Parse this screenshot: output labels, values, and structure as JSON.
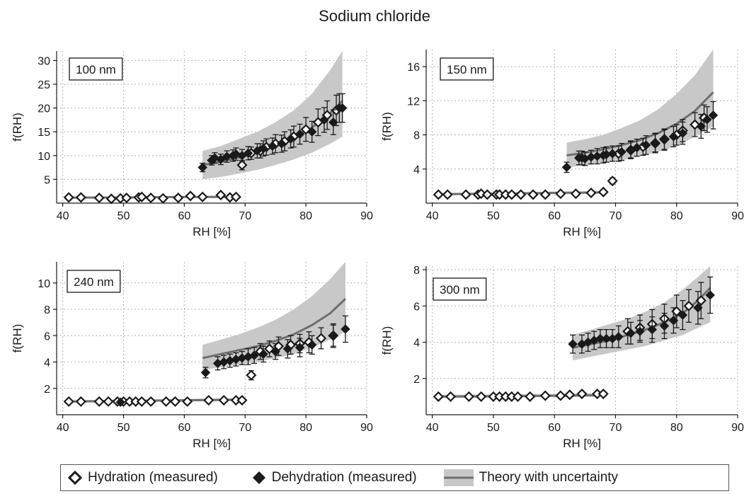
{
  "title": "Sodium chloride",
  "legend": {
    "hydration": "Hydration (measured)",
    "dehydration": "Dehydration (measured)",
    "theory": "Theory with uncertainty"
  },
  "colors": {
    "band": "#c8c8c8",
    "theory_line": "#6e6e6e",
    "marker": "#1a1a1a",
    "grid": "#b4b4b4"
  },
  "chart_data": [
    {
      "type": "scatter",
      "size_label": "100 nm",
      "xlabel": "RH [%]",
      "ylabel": "f(RH)",
      "xlim": [
        39,
        90
      ],
      "ylim": [
        0,
        32
      ],
      "xticks": [
        40,
        50,
        60,
        70,
        80,
        90
      ],
      "yticks": [
        5,
        10,
        15,
        20,
        25,
        30
      ],
      "grid": true,
      "series": [
        {
          "name": "Hydration (measured)",
          "x": [
            41,
            43,
            46,
            48,
            49.5,
            50.5,
            52.5,
            53,
            54.5,
            56.5,
            59,
            61,
            63,
            66,
            67.5,
            68.5,
            69.5,
            71,
            72.5,
            73.5,
            75,
            76.5,
            78,
            80,
            82,
            83.5,
            85
          ],
          "y": [
            1.2,
            1.2,
            1.1,
            0.9,
            1.0,
            1.1,
            1.2,
            1.3,
            1.1,
            1.0,
            1.1,
            1.5,
            1.3,
            1.7,
            1.2,
            1.3,
            8.0,
            10.5,
            11.0,
            11.8,
            12.5,
            13.0,
            14.0,
            15.5,
            17.0,
            18.5,
            19.5
          ],
          "yerr": [
            0,
            0,
            0,
            0,
            0,
            0,
            0,
            0,
            0,
            0,
            0,
            0,
            0,
            0,
            0,
            0,
            1.0,
            1.3,
            1.5,
            1.7,
            1.9,
            2.0,
            2.2,
            2.5,
            2.8,
            3.0,
            3.2
          ]
        },
        {
          "name": "Dehydration (measured)",
          "x": [
            63,
            64.5,
            65,
            66,
            67,
            68,
            68.5,
            69.5,
            70.5,
            72,
            73,
            74.5,
            76,
            77.5,
            79,
            81,
            83,
            84.5,
            85.5,
            86
          ],
          "y": [
            7.5,
            9.0,
            9.5,
            9.2,
            9.8,
            10.0,
            10.3,
            10.0,
            10.5,
            11.0,
            11.5,
            12.0,
            12.5,
            13.5,
            14.5,
            15.0,
            17.5,
            17.0,
            20.0,
            20.0
          ],
          "yerr": [
            0.9,
            1.0,
            1.1,
            1.1,
            1.2,
            1.2,
            1.3,
            1.3,
            1.4,
            1.5,
            1.6,
            1.7,
            1.8,
            1.9,
            2.1,
            2.2,
            2.6,
            2.6,
            3.0,
            3.0
          ]
        }
      ],
      "theory": {
        "x": [
          41,
          50,
          60,
          69,
          63,
          66,
          69,
          72,
          75,
          78,
          81,
          84,
          86
        ],
        "y": [
          1.15,
          1.2,
          1.3,
          1.3,
          8.0,
          8.7,
          9.6,
          10.7,
          12.0,
          13.7,
          15.9,
          18.9,
          21.5
        ],
        "lower": [
          1.0,
          1.0,
          1.1,
          1.1,
          5.0,
          5.5,
          6.2,
          7.0,
          8.0,
          9.2,
          10.6,
          12.5,
          14.0
        ],
        "upper": [
          1.35,
          1.4,
          1.5,
          1.5,
          11.0,
          12.0,
          13.5,
          15.0,
          17.0,
          19.5,
          23.0,
          28.0,
          32.0
        ],
        "segments": [
          [
            0,
            3
          ],
          [
            4,
            12
          ]
        ]
      }
    },
    {
      "type": "scatter",
      "size_label": "150 nm",
      "xlabel": "RH [%]",
      "ylabel": "f(RH)",
      "xlim": [
        39,
        90
      ],
      "ylim": [
        0,
        18
      ],
      "xticks": [
        40,
        50,
        60,
        70,
        80,
        90
      ],
      "yticks": [
        4,
        8,
        12,
        16
      ],
      "grid": true,
      "series": [
        {
          "name": "Hydration (measured)",
          "x": [
            41,
            42.5,
            45.5,
            47.5,
            48,
            49,
            50.5,
            51,
            52,
            53,
            54.5,
            56.5,
            58.5,
            61,
            63.5,
            66,
            68,
            69.5,
            70.5,
            72.5,
            74.5,
            76.5,
            78,
            80,
            81,
            83,
            84.5
          ],
          "y": [
            1.0,
            1.0,
            1.0,
            1.0,
            1.1,
            1.0,
            1.0,
            1.0,
            1.0,
            1.0,
            1.0,
            1.0,
            1.0,
            1.1,
            1.1,
            1.2,
            1.3,
            2.6,
            5.8,
            6.2,
            6.6,
            7.0,
            7.5,
            8.0,
            8.5,
            9.2,
            10.0
          ],
          "yerr": [
            0,
            0,
            0,
            0,
            0,
            0,
            0,
            0,
            0,
            0,
            0,
            0,
            0,
            0,
            0,
            0,
            0,
            0.35,
            0.9,
            1.0,
            1.0,
            1.1,
            1.2,
            1.2,
            1.3,
            1.4,
            1.5
          ]
        },
        {
          "name": "Dehydration (measured)",
          "x": [
            62,
            64,
            64.5,
            65,
            66,
            67,
            68,
            68.5,
            69.5,
            71,
            72.5,
            73.5,
            75,
            76.5,
            78,
            79.5,
            81,
            84,
            85,
            86
          ],
          "y": [
            4.2,
            5.3,
            5.3,
            5.2,
            5.4,
            5.5,
            5.6,
            5.7,
            5.8,
            6.0,
            6.3,
            6.5,
            6.8,
            7.1,
            7.4,
            7.8,
            8.2,
            9.0,
            9.8,
            10.3
          ],
          "yerr": [
            0.6,
            0.8,
            0.8,
            0.8,
            0.8,
            0.9,
            0.9,
            0.9,
            0.9,
            1.0,
            1.0,
            1.0,
            1.1,
            1.1,
            1.2,
            1.2,
            1.3,
            1.4,
            1.5,
            1.6
          ]
        }
      ],
      "theory": {
        "x": [
          41,
          50,
          60,
          68,
          62,
          65,
          68,
          71,
          74,
          77,
          80,
          83,
          86
        ],
        "y": [
          1.05,
          1.1,
          1.2,
          1.25,
          5.6,
          5.9,
          6.3,
          6.8,
          7.4,
          8.2,
          9.3,
          10.8,
          13.0
        ],
        "lower": [
          0.95,
          1.0,
          1.05,
          1.1,
          4.2,
          4.4,
          4.7,
          5.0,
          5.5,
          6.0,
          6.7,
          7.8,
          9.0
        ],
        "upper": [
          1.2,
          1.25,
          1.35,
          1.4,
          7.1,
          7.5,
          8.0,
          8.8,
          9.7,
          11.0,
          12.8,
          15.0,
          18.0
        ],
        "segments": [
          [
            0,
            3
          ],
          [
            4,
            12
          ]
        ]
      }
    },
    {
      "type": "scatter",
      "size_label": "240 nm",
      "xlabel": "RH [%]",
      "ylabel": "f(RH)",
      "xlim": [
        39,
        90
      ],
      "ylim": [
        0,
        11.6
      ],
      "xticks": [
        40,
        50,
        60,
        70,
        80,
        90
      ],
      "yticks": [
        2,
        4,
        6,
        8,
        10
      ],
      "grid": true,
      "series": [
        {
          "name": "Hydration (measured)",
          "x": [
            41,
            43,
            46,
            47.5,
            49,
            50,
            51,
            52,
            53,
            54.5,
            57,
            58.5,
            60.5,
            64,
            66.5,
            68.5,
            69.5,
            71,
            72.5,
            74,
            75.5,
            77.5,
            79,
            80.5,
            82.5,
            84.5
          ],
          "y": [
            1.0,
            1.0,
            1.0,
            1.0,
            1.0,
            1.0,
            1.0,
            1.0,
            1.0,
            1.0,
            1.0,
            1.0,
            1.0,
            1.1,
            1.1,
            1.1,
            1.1,
            3.0,
            4.8,
            5.0,
            5.2,
            5.3,
            5.4,
            5.5,
            5.8,
            6.0
          ],
          "yerr": [
            0,
            0,
            0,
            0,
            0,
            0,
            0,
            0,
            0,
            0,
            0,
            0,
            0,
            0,
            0,
            0,
            0,
            0.35,
            0.6,
            0.6,
            0.7,
            0.7,
            0.7,
            0.8,
            0.8,
            0.9
          ]
        },
        {
          "name": "Dehydration (measured)",
          "x": [
            49.5,
            63.5,
            65.5,
            66.5,
            67.5,
            68.5,
            69.5,
            70.5,
            71.5,
            73,
            75,
            77,
            79,
            81,
            84.5,
            86.5
          ],
          "y": [
            0.95,
            3.2,
            3.9,
            4.0,
            4.1,
            4.2,
            4.3,
            4.4,
            4.5,
            4.6,
            4.8,
            5.0,
            5.1,
            5.3,
            6.0,
            6.5
          ],
          "yerr": [
            0.1,
            0.4,
            0.5,
            0.5,
            0.5,
            0.5,
            0.5,
            0.6,
            0.6,
            0.6,
            0.6,
            0.7,
            0.7,
            0.7,
            0.8,
            1.0
          ]
        }
      ],
      "theory": {
        "x": [
          41,
          50,
          60,
          70,
          63,
          66,
          69,
          72,
          75,
          78,
          81,
          84,
          86.5
        ],
        "y": [
          1.0,
          1.05,
          1.1,
          1.15,
          4.3,
          4.6,
          4.9,
          5.2,
          5.6,
          6.1,
          6.8,
          7.7,
          8.8
        ],
        "lower": [
          0.92,
          0.95,
          1.0,
          1.05,
          3.4,
          3.6,
          3.8,
          4.0,
          4.3,
          4.6,
          5.1,
          5.7,
          6.3
        ],
        "upper": [
          1.1,
          1.15,
          1.2,
          1.25,
          5.3,
          5.7,
          6.1,
          6.6,
          7.2,
          8.0,
          9.0,
          10.3,
          11.6
        ],
        "segments": [
          [
            0,
            3
          ],
          [
            4,
            12
          ]
        ]
      }
    },
    {
      "type": "scatter",
      "size_label": "300 nm",
      "xlabel": "RH [%]",
      "ylabel": "f(RH)",
      "xlim": [
        39,
        90
      ],
      "ylim": [
        0,
        8.2
      ],
      "xticks": [
        40,
        50,
        60,
        70,
        80,
        90
      ],
      "yticks": [
        2,
        4,
        6,
        8
      ],
      "grid": true,
      "series": [
        {
          "name": "Hydration (measured)",
          "x": [
            41,
            43,
            46,
            48,
            50,
            51,
            52,
            53,
            54,
            56,
            58.5,
            61,
            62.5,
            64.5,
            67,
            68,
            72,
            74,
            76,
            78,
            80,
            82,
            84
          ],
          "y": [
            1.0,
            1.0,
            1.0,
            1.0,
            1.0,
            1.0,
            1.0,
            1.0,
            1.0,
            1.0,
            1.05,
            1.05,
            1.1,
            1.15,
            1.15,
            1.15,
            4.6,
            4.8,
            5.0,
            5.3,
            5.7,
            6.0,
            6.3
          ],
          "yerr": [
            0,
            0,
            0,
            0,
            0,
            0,
            0,
            0,
            0,
            0,
            0,
            0,
            0,
            0,
            0,
            0,
            0.7,
            0.7,
            0.8,
            0.8,
            0.9,
            0.9,
            1.0
          ]
        },
        {
          "name": "Dehydration (measured)",
          "x": [
            63,
            64.5,
            65.5,
            66.5,
            67.5,
            68.5,
            69.5,
            70.5,
            72.5,
            74,
            76,
            78,
            79.5,
            81,
            83.5,
            85.5
          ],
          "y": [
            3.9,
            3.9,
            4.0,
            4.1,
            4.2,
            4.2,
            4.2,
            4.3,
            4.5,
            4.6,
            4.7,
            4.9,
            5.2,
            5.5,
            5.9,
            6.6
          ],
          "yerr": [
            0.5,
            0.5,
            0.5,
            0.5,
            0.5,
            0.5,
            0.5,
            0.6,
            0.6,
            0.6,
            0.7,
            0.7,
            0.7,
            0.8,
            0.9,
            1.0
          ]
        }
      ],
      "theory": {
        "x": [
          41,
          50,
          60,
          68.5,
          63,
          66,
          69,
          72,
          75,
          78,
          81,
          83.5,
          85.5
        ],
        "y": [
          1.0,
          1.02,
          1.05,
          1.08,
          3.7,
          3.9,
          4.1,
          4.4,
          4.7,
          5.1,
          5.6,
          6.3,
          7.0
        ],
        "lower": [
          0.92,
          0.94,
          0.97,
          1.0,
          3.0,
          3.2,
          3.4,
          3.6,
          3.8,
          4.1,
          4.4,
          4.8,
          5.1
        ],
        "upper": [
          1.1,
          1.12,
          1.15,
          1.2,
          4.4,
          4.7,
          5.0,
          5.3,
          5.7,
          6.2,
          6.9,
          7.6,
          8.2
        ],
        "segments": [
          [
            0,
            3
          ],
          [
            4,
            12
          ]
        ]
      }
    }
  ]
}
